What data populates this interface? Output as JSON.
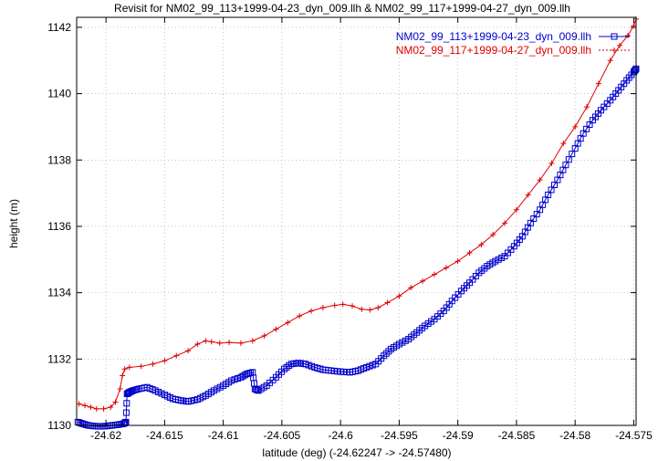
{
  "chart_data": {
    "type": "line",
    "title": "Revisit for NM02_99_113+1999-04-23_dyn_009.llh & NM02_99_117+1999-04-27_dyn_009.llh",
    "xlabel": "latitude (deg) (-24.62247 -> -24.57480)",
    "ylabel": "height (m)",
    "xlim": [
      -24.6225,
      -24.5748
    ],
    "ylim": [
      1130,
      1142.3
    ],
    "xticks": [
      -24.62,
      -24.615,
      -24.61,
      -24.605,
      -24.6,
      -24.595,
      -24.59,
      -24.585,
      -24.58,
      -24.575
    ],
    "xtick_labels": [
      "-24.62",
      "-24.615",
      "-24.61",
      "-24.605",
      "-24.6",
      "-24.595",
      "-24.59",
      "-24.585",
      "-24.58",
      "-24.575"
    ],
    "yticks": [
      1130,
      1132,
      1134,
      1136,
      1138,
      1140,
      1142
    ],
    "ytick_labels": [
      "1130",
      "1132",
      "1134",
      "1136",
      "1138",
      "1140",
      "1142"
    ],
    "grid": true,
    "legend_position": "top-right",
    "series": [
      {
        "name": "NM02_99_113+1999-04-23_dyn_009.llh",
        "color": "#0000cc",
        "marker": "square",
        "x": [
          -24.6224,
          -24.622,
          -24.6215,
          -24.621,
          -24.6205,
          -24.62,
          -24.6195,
          -24.619,
          -24.6185,
          -24.6183,
          -24.6182,
          -24.618,
          -24.6177,
          -24.6172,
          -24.6165,
          -24.6158,
          -24.615,
          -24.6143,
          -24.6136,
          -24.613,
          -24.6122,
          -24.6115,
          -24.6108,
          -24.61,
          -24.6093,
          -24.6085,
          -24.608,
          -24.6075,
          -24.6073,
          -24.607,
          -24.6063,
          -24.6055,
          -24.6048,
          -24.6042,
          -24.6036,
          -24.603,
          -24.6022,
          -24.6015,
          -24.6008,
          -24.6,
          -24.5992,
          -24.5985,
          -24.5978,
          -24.597,
          -24.5963,
          -24.5957,
          -24.595,
          -24.5942,
          -24.5935,
          -24.5928,
          -24.592,
          -24.5912,
          -24.5905,
          -24.5897,
          -24.589,
          -24.5882,
          -24.5875,
          -24.5868,
          -24.586,
          -24.5852,
          -24.5845,
          -24.5838,
          -24.583,
          -24.5823,
          -24.5815,
          -24.5808,
          -24.58,
          -24.5793,
          -24.5785,
          -24.5778,
          -24.577,
          -24.5763,
          -24.5756,
          -24.575,
          -24.5748
        ],
        "y": [
          1130.1,
          1130.05,
          1130.0,
          1129.98,
          1129.97,
          1129.98,
          1130.0,
          1130.02,
          1130.05,
          1130.1,
          1130.95,
          1131.0,
          1131.05,
          1131.1,
          1131.15,
          1131.05,
          1130.92,
          1130.8,
          1130.75,
          1130.72,
          1130.78,
          1130.9,
          1131.05,
          1131.2,
          1131.35,
          1131.45,
          1131.55,
          1131.6,
          1131.1,
          1131.05,
          1131.2,
          1131.45,
          1131.7,
          1131.85,
          1131.88,
          1131.85,
          1131.75,
          1131.68,
          1131.65,
          1131.62,
          1131.6,
          1131.65,
          1131.75,
          1131.85,
          1132.1,
          1132.3,
          1132.45,
          1132.6,
          1132.8,
          1133.0,
          1133.2,
          1133.45,
          1133.75,
          1134.05,
          1134.3,
          1134.6,
          1134.8,
          1134.95,
          1135.1,
          1135.4,
          1135.7,
          1136.1,
          1136.5,
          1136.95,
          1137.4,
          1137.85,
          1138.35,
          1138.8,
          1139.2,
          1139.5,
          1139.8,
          1140.1,
          1140.4,
          1140.65,
          1140.75
        ]
      },
      {
        "name": "NM02_99_117+1999-04-27_dyn_009.llh",
        "color": "#dd0000",
        "marker": "plus",
        "x": [
          -24.6223,
          -24.6218,
          -24.6213,
          -24.6208,
          -24.6202,
          -24.6196,
          -24.6192,
          -24.6188,
          -24.6186,
          -24.6184,
          -24.618,
          -24.617,
          -24.616,
          -24.615,
          -24.614,
          -24.613,
          -24.6122,
          -24.6115,
          -24.611,
          -24.6103,
          -24.6095,
          -24.6085,
          -24.6075,
          -24.6065,
          -24.6055,
          -24.6045,
          -24.6035,
          -24.6025,
          -24.6015,
          -24.6005,
          -24.5998,
          -24.599,
          -24.5982,
          -24.5975,
          -24.5968,
          -24.596,
          -24.595,
          -24.594,
          -24.593,
          -24.592,
          -24.591,
          -24.59,
          -24.589,
          -24.588,
          -24.587,
          -24.586,
          -24.585,
          -24.584,
          -24.583,
          -24.582,
          -24.581,
          -24.58,
          -24.579,
          -24.578,
          -24.577,
          -24.5762,
          -24.5755,
          -24.575,
          -24.5748
        ],
        "y": [
          1130.65,
          1130.6,
          1130.55,
          1130.5,
          1130.5,
          1130.55,
          1130.7,
          1131.1,
          1131.5,
          1131.7,
          1131.75,
          1131.78,
          1131.85,
          1131.95,
          1132.1,
          1132.25,
          1132.45,
          1132.55,
          1132.52,
          1132.48,
          1132.5,
          1132.48,
          1132.55,
          1132.7,
          1132.9,
          1133.1,
          1133.3,
          1133.45,
          1133.55,
          1133.62,
          1133.65,
          1133.6,
          1133.5,
          1133.48,
          1133.55,
          1133.7,
          1133.9,
          1134.15,
          1134.35,
          1134.55,
          1134.75,
          1134.95,
          1135.2,
          1135.45,
          1135.75,
          1136.1,
          1136.5,
          1136.95,
          1137.4,
          1137.9,
          1138.5,
          1139.0,
          1139.6,
          1140.3,
          1141.0,
          1141.45,
          1141.75,
          1142.05,
          1142.25
        ]
      }
    ]
  }
}
